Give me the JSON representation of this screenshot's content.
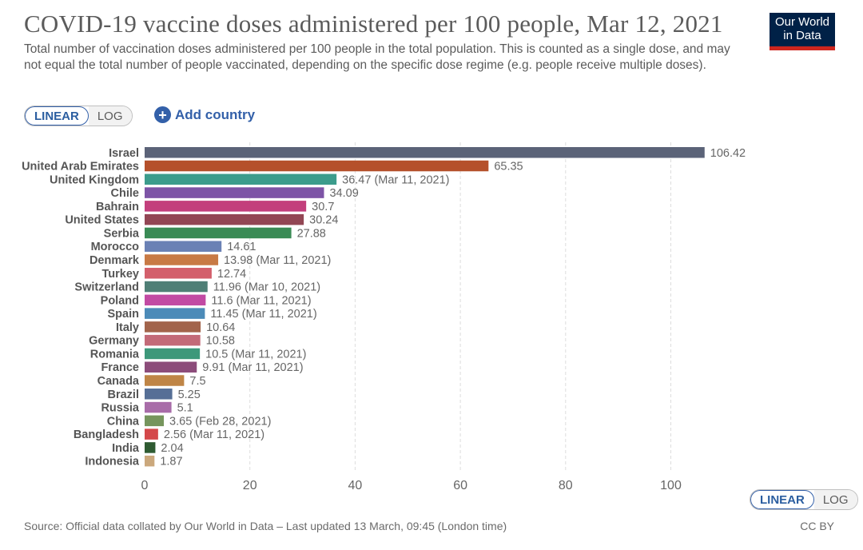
{
  "header": {
    "title": "COVID-19 vaccine doses administered per 100 people, Mar 12, 2021",
    "subtitle": "Total number of vaccination doses administered per 100 people in the total population. This is counted as a single dose, and may not equal the total number of people vaccinated, depending on the specific dose regime (e.g. people receive multiple doses).",
    "logo_line1": "Our World",
    "logo_line2": "in Data"
  },
  "controls": {
    "linear_label": "LINEAR",
    "log_label": "LOG",
    "add_country_label": "Add country",
    "add_icon": "plus-circle-icon"
  },
  "footer": {
    "source": "Source: Official data collated by Our World in Data – Last updated 13 March, 09:45 (London time)",
    "license": "CC BY"
  },
  "chart_data": {
    "type": "bar",
    "orientation": "horizontal",
    "xlim": [
      0,
      106.42
    ],
    "x_ticks": [
      0,
      20,
      40,
      60,
      80,
      100
    ],
    "grid": "vertical dashed",
    "categories": [
      "Israel",
      "United Arab Emirates",
      "United Kingdom",
      "Chile",
      "Bahrain",
      "United States",
      "Serbia",
      "Morocco",
      "Denmark",
      "Turkey",
      "Switzerland",
      "Poland",
      "Spain",
      "Italy",
      "Germany",
      "Romania",
      "France",
      "Canada",
      "Brazil",
      "Russia",
      "China",
      "Bangladesh",
      "India",
      "Indonesia"
    ],
    "values": [
      106.42,
      65.35,
      36.47,
      34.09,
      30.7,
      30.24,
      27.88,
      14.61,
      13.98,
      12.74,
      11.96,
      11.6,
      11.45,
      10.64,
      10.58,
      10.5,
      9.91,
      7.5,
      5.25,
      5.1,
      3.65,
      2.56,
      2.04,
      1.87
    ],
    "value_labels": [
      "106.42",
      "65.35",
      "36.47 (Mar 11, 2021)",
      "34.09",
      "30.7",
      "30.24",
      "27.88",
      "14.61",
      "13.98 (Mar 11, 2021)",
      "12.74",
      "11.96 (Mar 10, 2021)",
      "11.6 (Mar 11, 2021)",
      "11.45 (Mar 11, 2021)",
      "10.64",
      "10.58",
      "10.5 (Mar 11, 2021)",
      "9.91 (Mar 11, 2021)",
      "7.5",
      "5.25",
      "5.1",
      "3.65 (Feb 28, 2021)",
      "2.56 (Mar 11, 2021)",
      "2.04",
      "1.87"
    ],
    "colors": [
      "#5b6378",
      "#b5502b",
      "#3c9c8c",
      "#7d54a6",
      "#c33f7c",
      "#924654",
      "#3a8b55",
      "#6a81b5",
      "#c87a45",
      "#d35f6b",
      "#4f7f76",
      "#c24aa3",
      "#4c8bb8",
      "#a2644b",
      "#c36a78",
      "#3d987a",
      "#8c4c7a",
      "#bf8546",
      "#566f96",
      "#a86ca8",
      "#76955d",
      "#d4484a",
      "#2f5b32",
      "#cba87c"
    ]
  }
}
